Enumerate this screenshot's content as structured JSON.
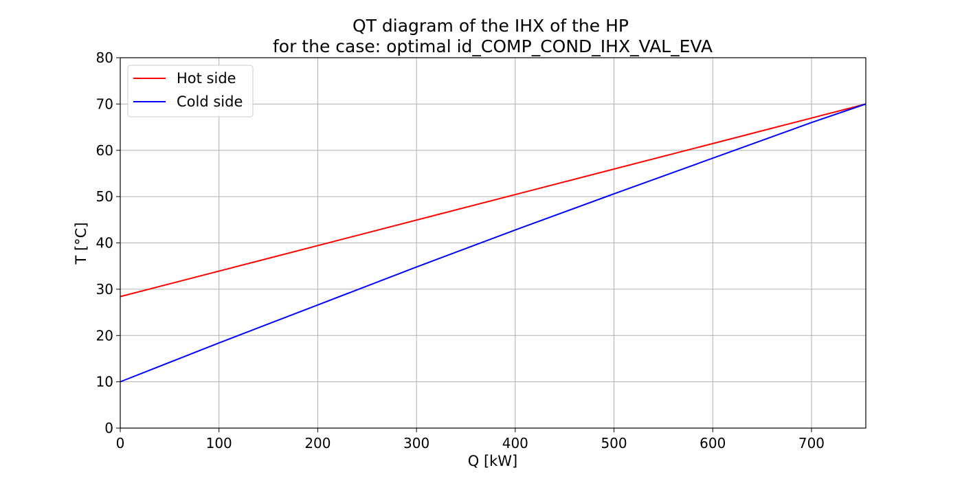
{
  "chart_data": {
    "type": "line",
    "title": [
      "QT diagram of the IHX of the HP",
      "for the case: optimal id_COMP_COND_IHX_VAL_EVA"
    ],
    "xlabel": "Q [kW]",
    "ylabel": "T [°C]",
    "xlim": [
      0,
      755
    ],
    "ylim": [
      0,
      80
    ],
    "xticks": [
      0,
      100,
      200,
      300,
      400,
      500,
      600,
      700
    ],
    "yticks": [
      0,
      10,
      20,
      30,
      40,
      50,
      60,
      70,
      80
    ],
    "grid": true,
    "legend_position": "top-left",
    "series": [
      {
        "name": "Hot side",
        "color": "#ff0000",
        "x": [
          0,
          755
        ],
        "y": [
          28.4,
          70.0
        ]
      },
      {
        "name": "Cold side",
        "color": "#0000ff",
        "x": [
          0,
          100,
          200,
          300,
          400,
          500,
          600,
          700,
          755
        ],
        "y": [
          10.0,
          18.4,
          26.6,
          34.8,
          42.8,
          50.6,
          58.3,
          66.0,
          70.0
        ]
      }
    ]
  }
}
